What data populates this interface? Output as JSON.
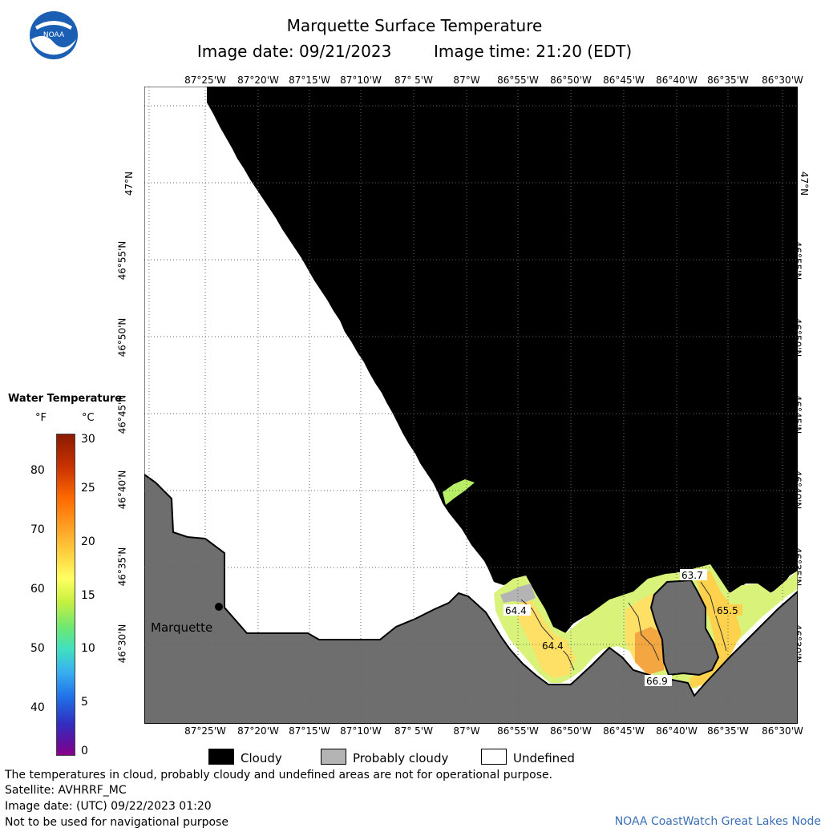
{
  "header": {
    "title": "Marquette Surface Temperature",
    "image_date": "Image date: 09/21/2023",
    "image_time": "Image time: 21:20 (EDT)"
  },
  "logo": {
    "text": "NOAA",
    "icon": "noaa-logo"
  },
  "map": {
    "lon_labels": [
      "87°25'W",
      "87°20'W",
      "87°15'W",
      "87°10'W",
      "87° 5'W",
      "87°W",
      "86°55'W",
      "86°50'W",
      "86°45'W",
      "86°40'W",
      "86°35'W",
      "86°30'W"
    ],
    "lat_labels": [
      "47°N",
      "46°55'N",
      "46°50'N",
      "46°45'N",
      "46°40'N",
      "46°35'N",
      "46°30'N"
    ],
    "city": "Marquette",
    "temp_labels": [
      "64.4",
      "64.4",
      "63.7",
      "65.5",
      "66.9"
    ],
    "colors": {
      "cloud": "#000000",
      "land": "#6e6e6e",
      "probably_cloudy": "#b4b4b4",
      "undefined": "#ffffff"
    }
  },
  "legend": {
    "title": "Water Temperature",
    "unit_f": "°F",
    "unit_c": "°C",
    "f_ticks": [
      "80",
      "70",
      "60",
      "50",
      "40"
    ],
    "c_ticks": [
      "30",
      "25",
      "20",
      "15",
      "10",
      "5",
      "0"
    ]
  },
  "key": {
    "cloudy": "Cloudy",
    "probably_cloudy": "Probably cloudy",
    "undefined": "Undefined"
  },
  "footer": {
    "note": "The temperatures in cloud, probably cloudy and undefined areas are not for operational purpose.",
    "satellite": "Satellite: AVHRRF_MC",
    "utc_date": "Image date: (UTC) 09/22/2023  01:20",
    "nav": "Not to be used for navigational purpose",
    "credit": "NOAA CoastWatch Great Lakes Node"
  }
}
